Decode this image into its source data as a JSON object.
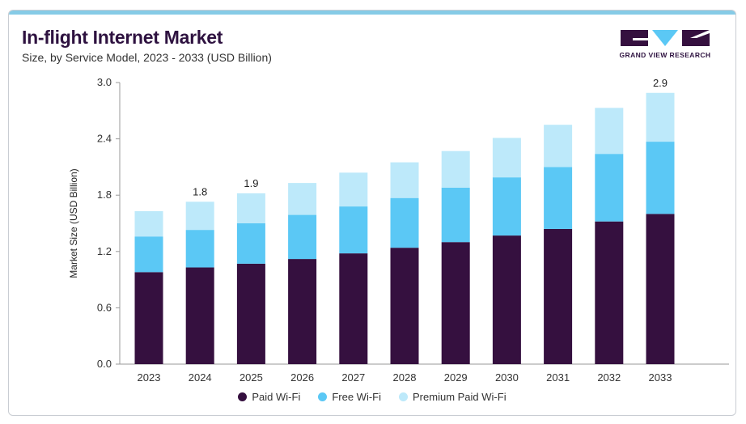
{
  "header": {
    "title": "In-flight Internet Market",
    "subtitle": "Size, by Service Model, 2023 - 2033 (USD Billion)"
  },
  "logo": {
    "text": "GRAND VIEW RESEARCH"
  },
  "colors": {
    "paid": "#35103f",
    "free": "#5bc8f5",
    "premium": "#bde9fa",
    "axis": "#999999",
    "brand": "#2e1240"
  },
  "chart_data": {
    "type": "bar",
    "stacked": true,
    "categories": [
      "2023",
      "2024",
      "2025",
      "2026",
      "2027",
      "2028",
      "2029",
      "2030",
      "2031",
      "2032",
      "2033"
    ],
    "series": [
      {
        "name": "Paid Wi-Fi",
        "values": [
          0.98,
          1.03,
          1.07,
          1.12,
          1.18,
          1.24,
          1.3,
          1.37,
          1.44,
          1.52,
          1.6
        ]
      },
      {
        "name": "Free Wi-Fi",
        "values": [
          0.38,
          0.4,
          0.43,
          0.47,
          0.5,
          0.53,
          0.58,
          0.62,
          0.66,
          0.72,
          0.77
        ]
      },
      {
        "name": "Premium Paid Wi-Fi",
        "values": [
          0.27,
          0.3,
          0.32,
          0.34,
          0.36,
          0.38,
          0.39,
          0.42,
          0.45,
          0.49,
          0.52
        ]
      }
    ],
    "total_labels": [
      {
        "category": "2024",
        "text": "1.8"
      },
      {
        "category": "2025",
        "text": "1.9"
      },
      {
        "category": "2033",
        "text": "2.9"
      }
    ],
    "ylabel": "Market Size (USD Billion)",
    "xlabel": "",
    "yticks": [
      "0.0",
      "0.6",
      "1.2",
      "1.8",
      "2.4",
      "3.0"
    ],
    "ylim": [
      0,
      3.0
    ],
    "grid": false,
    "legend_position": "bottom-center"
  }
}
